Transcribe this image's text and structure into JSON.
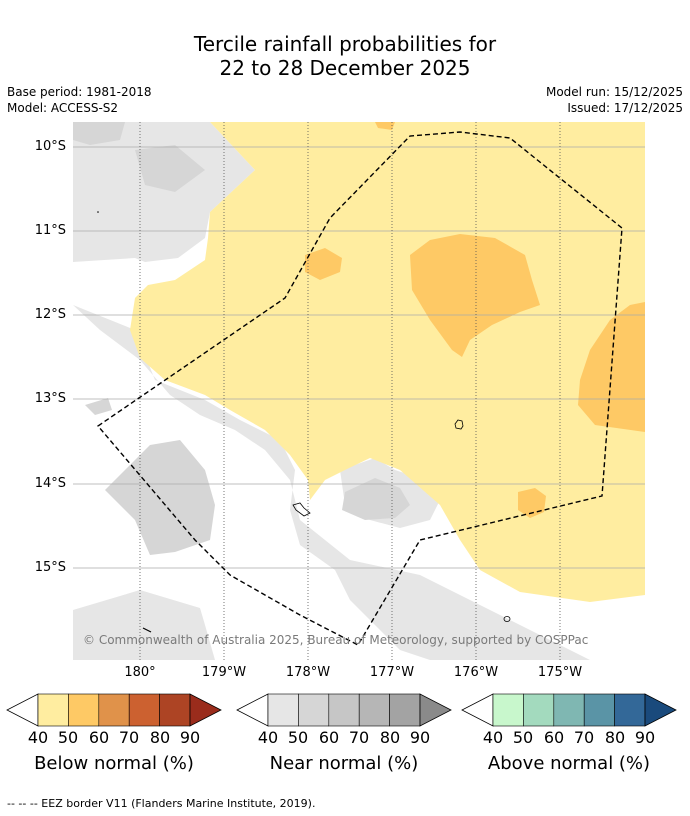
{
  "title": {
    "line1": "Tercile rainfall probabilities for",
    "line2": "22 to 28 December 2025"
  },
  "meta": {
    "base_period": "Base period: 1981-2018",
    "model": "Model: ACCESS-S2",
    "model_run": "Model run: 15/12/2025",
    "issued": "Issued: 17/12/2025"
  },
  "map": {
    "lat_labels": [
      "10°S",
      "11°S",
      "12°S",
      "13°S",
      "14°S",
      "15°S"
    ],
    "lon_labels": [
      "180°",
      "179°W",
      "178°W",
      "177°W",
      "176°W",
      "175°W"
    ],
    "copyright": "© Commonwealth of Australia 2025, Bureau of Meteorology, supported by COSPPac"
  },
  "colorbars": [
    {
      "title": "Below normal (%)",
      "ticks": [
        "40",
        "50",
        "60",
        "70",
        "80",
        "90"
      ],
      "colors": [
        "#ffeda0",
        "#fec965",
        "#e0924a",
        "#cc6130",
        "#ad4424",
        "#9a2c1c"
      ]
    },
    {
      "title": "Near normal (%)",
      "ticks": [
        "40",
        "50",
        "60",
        "70",
        "80",
        "90"
      ],
      "colors": [
        "#e6e6e6",
        "#d6d6d6",
        "#c6c6c6",
        "#b6b6b6",
        "#a3a3a3",
        "#8a8a8a"
      ]
    },
    {
      "title": "Above normal (%)",
      "ticks": [
        "40",
        "50",
        "60",
        "70",
        "80",
        "90"
      ],
      "colors": [
        "#c8f7cc",
        "#a3dabe",
        "#7fb7b2",
        "#5a94a6",
        "#336898",
        "#1a4a7c"
      ]
    }
  ],
  "footer": "--  --  -- EEZ border V11 (Flanders Marine Institute, 2019)."
}
